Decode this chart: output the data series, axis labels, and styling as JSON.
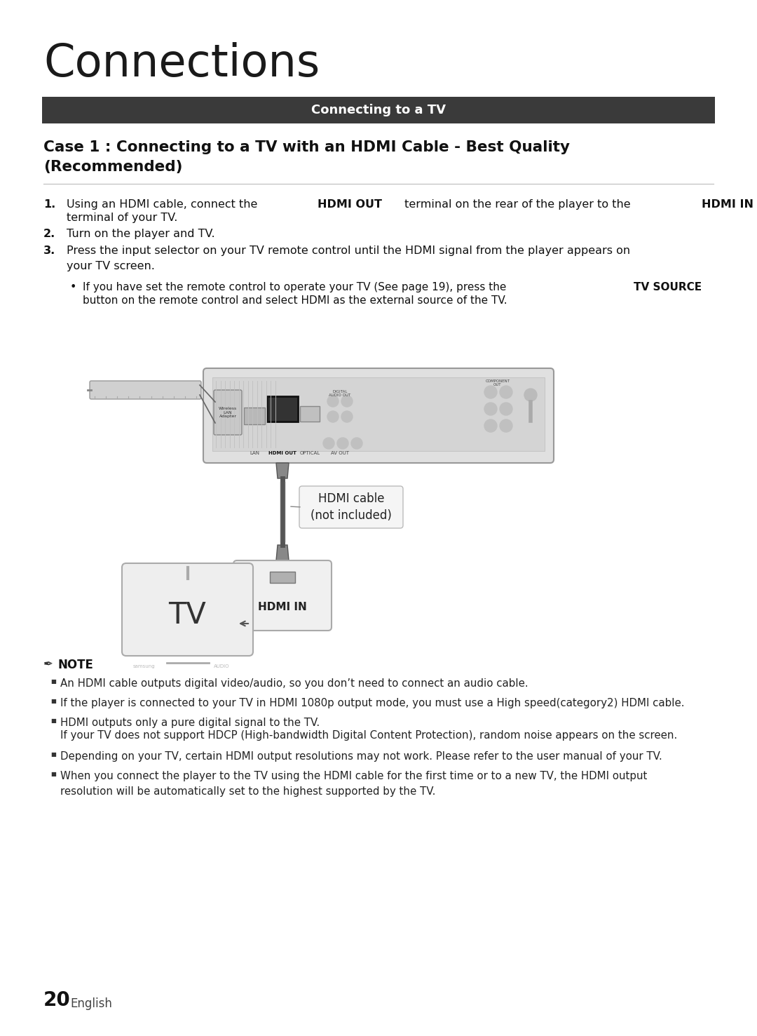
{
  "title": "Connections",
  "banner_text": "Connecting to a TV",
  "case_title_line1": "Case 1 : Connecting to a TV with an HDMI Cable - Best Quality",
  "case_title_line2": "(Recommended)",
  "step1_pre": "Using an HDMI cable, connect the ",
  "step1_bold1": "HDMI OUT",
  "step1_mid": " terminal on the rear of the player to the ",
  "step1_bold2": "HDMI IN",
  "step1_post": "\nterminal of your TV.",
  "step2": "Turn on the player and TV.",
  "step3": "Press the input selector on your TV remote control until the HDMI signal from the player appears on\nyour TV screen.",
  "bullet_pre": "If you have set the remote control to operate your TV (See page 19), press the ",
  "bullet_bold": "TV SOURCE",
  "bullet_post": "\nbutton on the remote control and select HDMI as the external source of the TV.",
  "hdmi_cable_label": "HDMI cable\n(not included)",
  "hdmi_in_label": "HDMI IN",
  "tv_label": "TV",
  "note_title": "NOTE",
  "note1": "An HDMI cable outputs digital video/audio, so you don’t need to connect an audio cable.",
  "note2": "If the player is connected to your TV in HDMI 1080p output mode, you must use a High speed(category2) HDMI cable.",
  "note3a": "HDMI outputs only a pure digital signal to the TV.",
  "note3b": "If your TV does not support HDCP (High-bandwidth Digital Content Protection), random noise appears on the screen.",
  "note4": "Depending on your TV, certain HDMI output resolutions may not work. Please refer to the user manual of your TV.",
  "note5": "When you connect the player to the TV using the HDMI cable for the first time or to a new TV, the HDMI output\nresolution will be automatically set to the highest supported by the TV.",
  "page_num": "20",
  "page_lang": "English",
  "bg_color": "#ffffff",
  "banner_bg": "#3a3a3a",
  "banner_fg": "#ffffff",
  "text_color": "#111111",
  "note_color": "#222222"
}
